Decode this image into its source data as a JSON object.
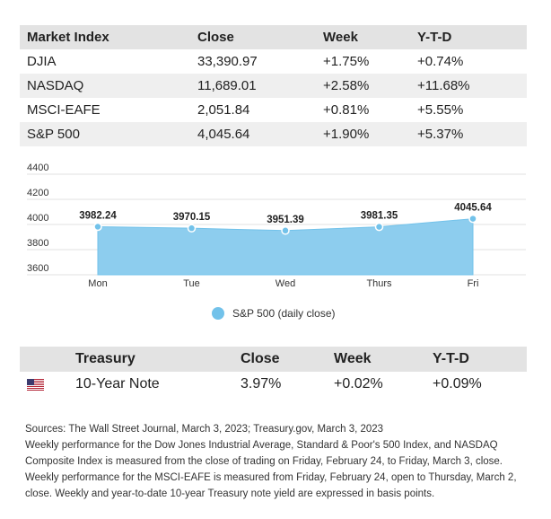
{
  "market_table": {
    "headers": [
      "Market Index",
      "Close",
      "Week",
      "Y-T-D"
    ],
    "rows": [
      [
        "DJIA",
        "33,390.97",
        "+1.75%",
        "+0.74%"
      ],
      [
        "NASDAQ",
        "11,689.01",
        "+2.58%",
        "+11.68%"
      ],
      [
        "MSCI-EAFE",
        "2,051.84",
        "+0.81%",
        "+5.55%"
      ],
      [
        "S&P 500",
        "4,045.64",
        "+1.90%",
        "+5.37%"
      ]
    ]
  },
  "chart_data": {
    "type": "area",
    "categories": [
      "Mon",
      "Tue",
      "Wed",
      "Thurs",
      "Fri"
    ],
    "series": [
      {
        "name": "S&P 500 (daily close)",
        "values": [
          3982.24,
          3970.15,
          3951.39,
          3981.35,
          4045.64
        ],
        "labels": [
          "3982.24",
          "3970.15",
          "3951.39",
          "3981.35",
          "4045.64"
        ],
        "color": "#8dcdee"
      }
    ],
    "yticks": [
      3600,
      3800,
      4000,
      4200,
      4400
    ],
    "ylim": [
      3600,
      4400
    ],
    "grid": true,
    "legend_position": "bottom"
  },
  "treasury_table": {
    "headers": [
      "",
      "Treasury",
      "Close",
      "Week",
      "Y-T-D"
    ],
    "rows": [
      {
        "flag": "us-flag-icon",
        "name": "10-Year Note",
        "close": "3.97%",
        "week": "+0.02%",
        "ytd": "+0.09%"
      }
    ]
  },
  "notes": [
    "Sources: The Wall Street Journal, March 3, 2023; Treasury.gov, March 3, 2023",
    "Weekly performance for the Dow Jones Industrial Average, Standard & Poor's 500 Index, and NASDAQ Composite Index is measured from the close of trading on Friday, February 24, to Friday, March 3, close. Weekly performance for the MSCI-EAFE is measured from Friday, February 24, open to Thursday, March 2, close. Weekly and year-to-date 10-year Treasury note yield are expressed in basis points."
  ]
}
